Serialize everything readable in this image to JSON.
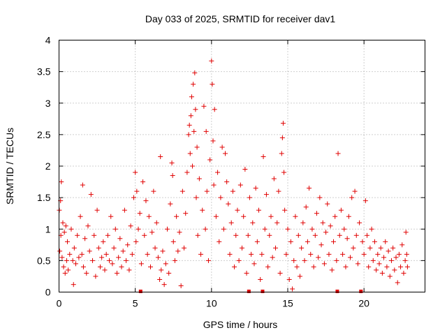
{
  "chart_data": {
    "type": "scatter",
    "title": "Day 033 of 2025, SRMTID for receiver dav1",
    "xlabel": "GPS time / hours",
    "ylabel": "SRMTID / TECUs",
    "xlim": [
      0,
      24
    ],
    "ylim": [
      0,
      4
    ],
    "x_ticks": [
      0,
      5,
      10,
      15,
      20
    ],
    "x_tick_labels": [
      "0",
      "5",
      "10",
      "15",
      "20"
    ],
    "y_ticks": [
      0,
      0.5,
      1,
      1.5,
      2,
      2.5,
      3,
      3.5,
      4
    ],
    "y_tick_labels": [
      "0",
      "0.5",
      "1",
      "1.5",
      "2",
      "2.5",
      "3",
      "3.5",
      "4"
    ],
    "grid": true,
    "marker": "plus",
    "color": "#e00000",
    "series": [
      {
        "name": "SRMTID",
        "points": [
          [
            0.02,
            1.3
          ],
          [
            0.05,
            0.65
          ],
          [
            0.1,
            1.45
          ],
          [
            0.12,
            0.9
          ],
          [
            0.15,
            1.75
          ],
          [
            0.2,
            0.55
          ],
          [
            0.25,
            1.1
          ],
          [
            0.3,
            0.4
          ],
          [
            0.35,
            0.95
          ],
          [
            0.4,
            0.3
          ],
          [
            0.45,
            1.05
          ],
          [
            0.5,
            0.5
          ],
          [
            0.55,
            0.8
          ],
          [
            0.6,
            0.35
          ],
          [
            0.7,
            0.6
          ],
          [
            0.8,
            1.0
          ],
          [
            0.9,
            0.5
          ],
          [
            0.95,
            0.12
          ],
          [
            1.0,
            0.7
          ],
          [
            1.1,
            0.45
          ],
          [
            1.2,
            0.9
          ],
          [
            1.3,
            0.55
          ],
          [
            1.4,
            1.2
          ],
          [
            1.5,
            0.6
          ],
          [
            1.55,
            1.7
          ],
          [
            1.6,
            0.4
          ],
          [
            1.7,
            0.85
          ],
          [
            1.8,
            0.3
          ],
          [
            1.9,
            1.05
          ],
          [
            2.0,
            0.65
          ],
          [
            2.1,
            1.55
          ],
          [
            2.2,
            0.5
          ],
          [
            2.3,
            0.9
          ],
          [
            2.4,
            0.25
          ],
          [
            2.5,
            1.3
          ],
          [
            2.6,
            0.7
          ],
          [
            2.7,
            0.4
          ],
          [
            2.8,
            0.55
          ],
          [
            2.9,
            0.8
          ],
          [
            3.0,
            0.35
          ],
          [
            3.1,
            0.6
          ],
          [
            3.2,
            0.9
          ],
          [
            3.3,
            0.5
          ],
          [
            3.4,
            1.2
          ],
          [
            3.5,
            0.45
          ],
          [
            3.6,
            0.7
          ],
          [
            3.7,
            1.0
          ],
          [
            3.8,
            0.3
          ],
          [
            3.9,
            0.55
          ],
          [
            4.0,
            0.85
          ],
          [
            4.1,
            0.4
          ],
          [
            4.2,
            0.65
          ],
          [
            4.3,
            1.3
          ],
          [
            4.4,
            0.5
          ],
          [
            4.5,
            0.75
          ],
          [
            4.6,
            0.35
          ],
          [
            4.7,
            1.05
          ],
          [
            4.8,
            0.6
          ],
          [
            4.9,
            1.5
          ],
          [
            5.0,
            1.9
          ],
          [
            5.05,
            0.8
          ],
          [
            5.1,
            1.6
          ],
          [
            5.2,
            1.0
          ],
          [
            5.3,
            1.25
          ],
          [
            5.35,
            0.01
          ],
          [
            5.4,
            0.45
          ],
          [
            5.5,
            1.75
          ],
          [
            5.6,
            0.9
          ],
          [
            5.7,
            1.45
          ],
          [
            5.8,
            0.6
          ],
          [
            5.9,
            1.2
          ],
          [
            6.0,
            0.4
          ],
          [
            6.1,
            0.95
          ],
          [
            6.2,
            1.6
          ],
          [
            6.3,
            0.7
          ],
          [
            6.4,
            1.1
          ],
          [
            6.5,
            0.55
          ],
          [
            6.6,
            0.2
          ],
          [
            6.65,
            2.15
          ],
          [
            6.7,
            0.35
          ],
          [
            6.8,
            0.65
          ],
          [
            6.9,
            0.12
          ],
          [
            7.0,
            0.45
          ],
          [
            7.1,
            1.0
          ],
          [
            7.2,
            0.3
          ],
          [
            7.3,
            1.4
          ],
          [
            7.4,
            2.05
          ],
          [
            7.45,
            1.85
          ],
          [
            7.5,
            0.8
          ],
          [
            7.6,
            0.5
          ],
          [
            7.7,
            1.2
          ],
          [
            7.8,
            0.65
          ],
          [
            7.9,
            0.95
          ],
          [
            8.0,
            0.1
          ],
          [
            8.1,
            1.6
          ],
          [
            8.2,
            0.7
          ],
          [
            8.3,
            1.25
          ],
          [
            8.4,
            1.9
          ],
          [
            8.5,
            2.5
          ],
          [
            8.55,
            2.65
          ],
          [
            8.6,
            2.2
          ],
          [
            8.65,
            2.8
          ],
          [
            8.7,
            3.1
          ],
          [
            8.75,
            2.0
          ],
          [
            8.8,
            3.3
          ],
          [
            8.85,
            2.55
          ],
          [
            8.9,
            3.48
          ],
          [
            8.95,
            2.9
          ],
          [
            9.0,
            1.5
          ],
          [
            9.05,
            2.3
          ],
          [
            9.1,
            0.9
          ],
          [
            9.2,
            1.8
          ],
          [
            9.3,
            0.6
          ],
          [
            9.4,
            1.3
          ],
          [
            9.5,
            2.95
          ],
          [
            9.6,
            1.0
          ],
          [
            9.65,
            2.55
          ],
          [
            9.7,
            1.6
          ],
          [
            9.8,
            0.5
          ],
          [
            9.9,
            2.1
          ],
          [
            10.0,
            3.67
          ],
          [
            10.05,
            3.3
          ],
          [
            10.1,
            2.4
          ],
          [
            10.15,
            1.7
          ],
          [
            10.2,
            2.9
          ],
          [
            10.3,
            1.2
          ],
          [
            10.4,
            1.9
          ],
          [
            10.5,
            0.8
          ],
          [
            10.6,
            1.5
          ],
          [
            10.7,
            2.3
          ],
          [
            10.8,
            1.0
          ],
          [
            10.9,
            2.2
          ],
          [
            11.0,
            1.75
          ],
          [
            11.1,
            1.4
          ],
          [
            11.2,
            0.6
          ],
          [
            11.3,
            1.1
          ],
          [
            11.4,
            1.6
          ],
          [
            11.5,
            0.4
          ],
          [
            11.6,
            0.9
          ],
          [
            11.7,
            1.3
          ],
          [
            11.8,
            0.5
          ],
          [
            11.9,
            1.7
          ],
          [
            12.0,
            0.7
          ],
          [
            12.1,
            1.2
          ],
          [
            12.2,
            1.95
          ],
          [
            12.3,
            0.3
          ],
          [
            12.4,
            0.9
          ],
          [
            12.45,
            0.01
          ],
          [
            12.5,
            1.5
          ],
          [
            12.6,
            0.6
          ],
          [
            12.7,
            1.1
          ],
          [
            12.8,
            0.45
          ],
          [
            12.9,
            1.65
          ],
          [
            13.0,
            0.8
          ],
          [
            13.1,
            1.3
          ],
          [
            13.2,
            0.2
          ],
          [
            13.3,
            0.6
          ],
          [
            13.35,
            0.01
          ],
          [
            13.4,
            2.15
          ],
          [
            13.5,
            1.0
          ],
          [
            13.6,
            1.55
          ],
          [
            13.7,
            0.4
          ],
          [
            13.8,
            0.9
          ],
          [
            13.9,
            1.2
          ],
          [
            14.0,
            0.55
          ],
          [
            14.1,
            1.8
          ],
          [
            14.2,
            0.7
          ],
          [
            14.3,
            1.1
          ],
          [
            14.4,
            1.6
          ],
          [
            14.5,
            0.3
          ],
          [
            14.6,
            2.2
          ],
          [
            14.65,
            2.45
          ],
          [
            14.7,
            2.68
          ],
          [
            14.75,
            1.9
          ],
          [
            14.8,
            1.3
          ],
          [
            14.9,
            0.6
          ],
          [
            15.0,
            1.0
          ],
          [
            15.1,
            0.2
          ],
          [
            15.2,
            0.8
          ],
          [
            15.3,
            0.05
          ],
          [
            15.4,
            0.5
          ],
          [
            15.5,
            1.2
          ],
          [
            15.6,
            0.4
          ],
          [
            15.7,
            0.9
          ],
          [
            15.8,
            0.25
          ],
          [
            15.9,
            0.7
          ],
          [
            16.0,
            1.1
          ],
          [
            16.1,
            0.5
          ],
          [
            16.2,
            1.35
          ],
          [
            16.3,
            0.8
          ],
          [
            16.4,
            1.65
          ],
          [
            16.5,
            0.6
          ],
          [
            16.6,
            1.0
          ],
          [
            16.7,
            0.4
          ],
          [
            16.8,
            0.9
          ],
          [
            16.9,
            1.25
          ],
          [
            17.0,
            0.55
          ],
          [
            17.1,
            1.5
          ],
          [
            17.2,
            0.75
          ],
          [
            17.3,
            1.1
          ],
          [
            17.4,
            0.45
          ],
          [
            17.5,
            0.95
          ],
          [
            17.6,
            1.4
          ],
          [
            17.7,
            0.6
          ],
          [
            17.8,
            1.05
          ],
          [
            17.9,
            0.35
          ],
          [
            18.0,
            0.8
          ],
          [
            18.1,
            1.2
          ],
          [
            18.2,
            0.5
          ],
          [
            18.25,
            0.01
          ],
          [
            18.3,
            2.2
          ],
          [
            18.4,
            0.9
          ],
          [
            18.5,
            1.3
          ],
          [
            18.6,
            0.6
          ],
          [
            18.7,
            1.0
          ],
          [
            18.8,
            0.4
          ],
          [
            18.9,
            0.85
          ],
          [
            19.0,
            1.2
          ],
          [
            19.1,
            0.55
          ],
          [
            19.2,
            1.5
          ],
          [
            19.3,
            0.7
          ],
          [
            19.4,
            1.6
          ],
          [
            19.5,
            0.9
          ],
          [
            19.6,
            0.45
          ],
          [
            19.7,
            1.1
          ],
          [
            19.8,
            0.01
          ],
          [
            19.9,
            0.8
          ],
          [
            20.0,
            0.6
          ],
          [
            20.1,
            1.45
          ],
          [
            20.2,
            0.9
          ],
          [
            20.3,
            0.4
          ],
          [
            20.4,
            0.7
          ],
          [
            20.5,
            1.0
          ],
          [
            20.6,
            0.5
          ],
          [
            20.7,
            0.8
          ],
          [
            20.8,
            0.35
          ],
          [
            20.9,
            0.6
          ],
          [
            21.0,
            0.45
          ],
          [
            21.1,
            0.7
          ],
          [
            21.2,
            0.3
          ],
          [
            21.3,
            0.55
          ],
          [
            21.4,
            0.8
          ],
          [
            21.5,
            0.4
          ],
          [
            21.6,
            0.65
          ],
          [
            21.7,
            0.25
          ],
          [
            21.8,
            0.5
          ],
          [
            21.9,
            0.7
          ],
          [
            22.0,
            0.35
          ],
          [
            22.1,
            0.55
          ],
          [
            22.2,
            0.15
          ],
          [
            22.3,
            0.6
          ],
          [
            22.4,
            0.4
          ],
          [
            22.5,
            0.75
          ],
          [
            22.6,
            0.3
          ],
          [
            22.7,
            0.5
          ],
          [
            22.75,
            0.95
          ],
          [
            22.8,
            0.6
          ],
          [
            22.85,
            0.4
          ]
        ]
      }
    ]
  }
}
